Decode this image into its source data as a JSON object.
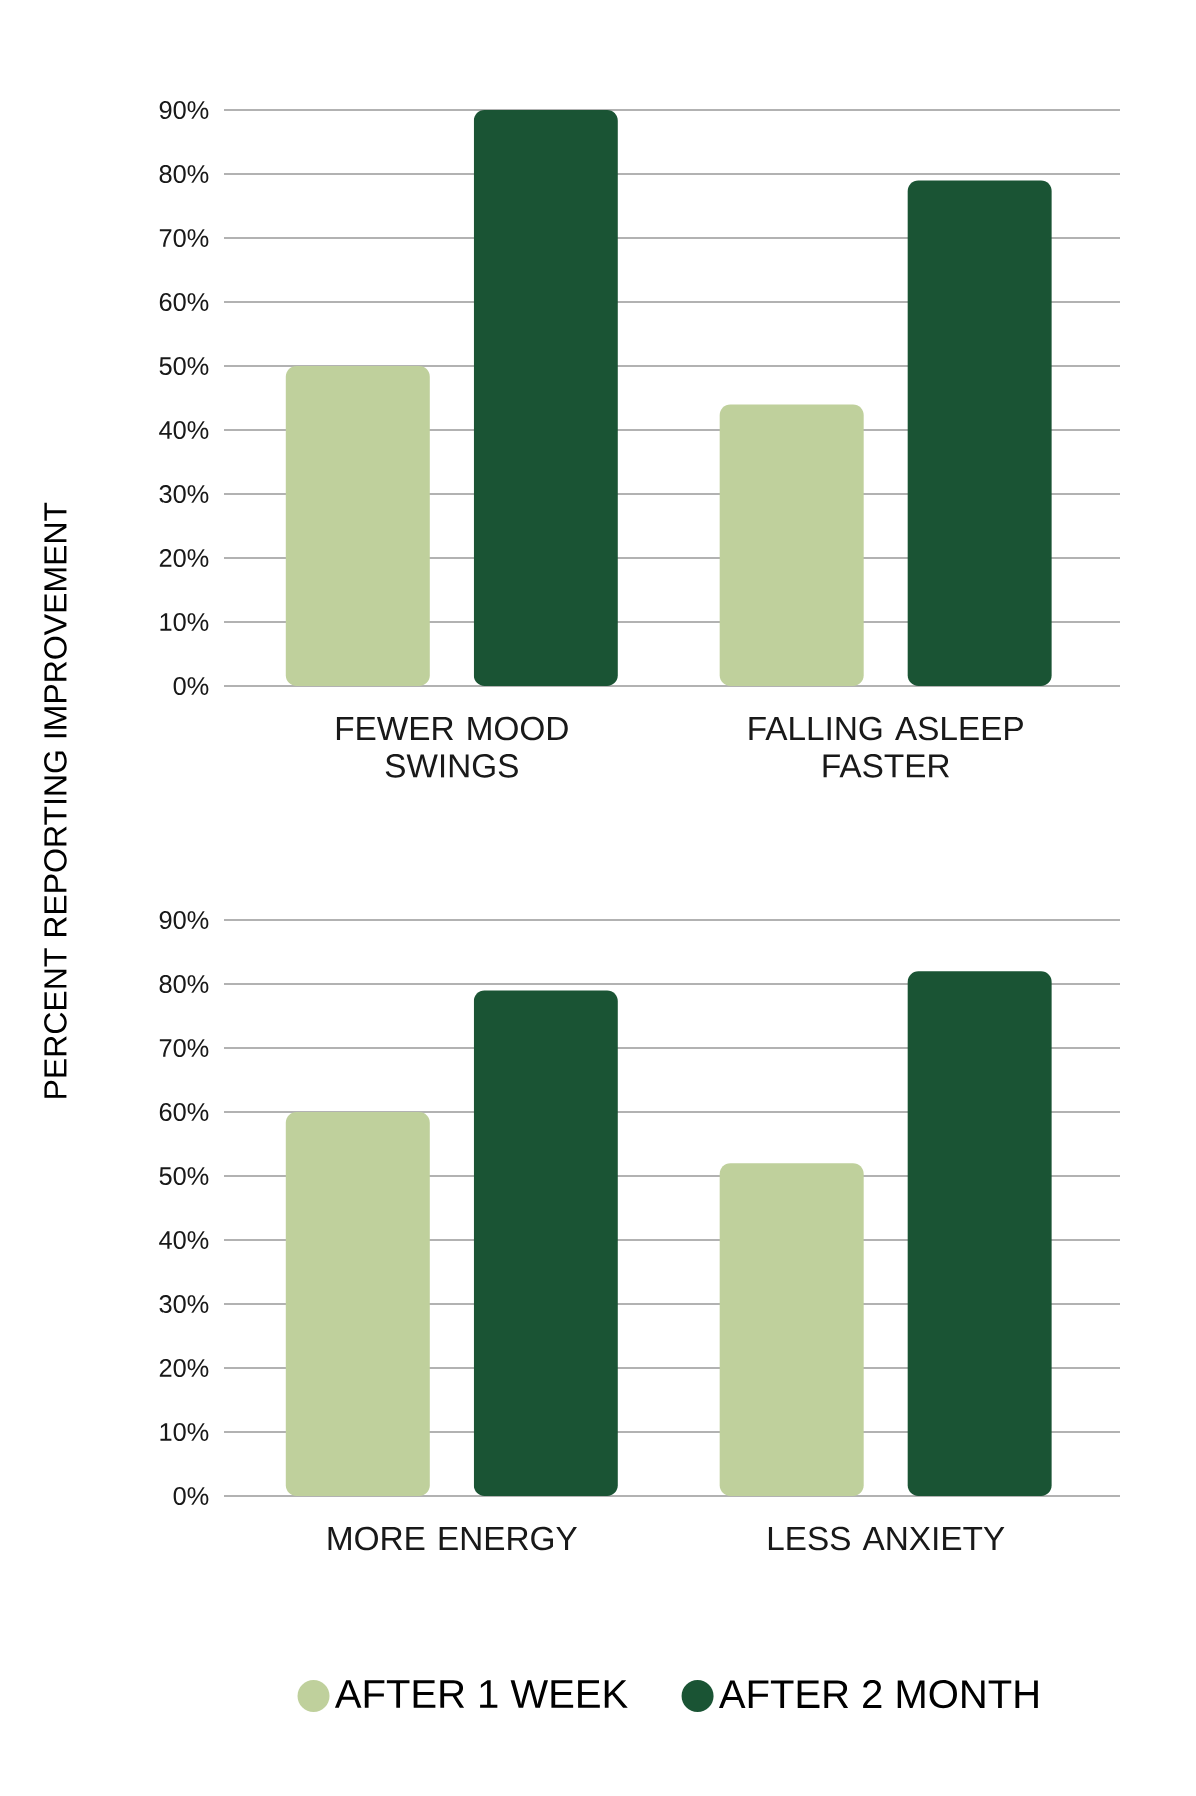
{
  "chart_data": [
    {
      "type": "bar",
      "ylabel": "PERCENT REPORTING IMPROVEMENT",
      "categories": [
        "FEWER MOOD SWINGS",
        "FALLING ASLEEP FASTER"
      ],
      "series": [
        {
          "color": "#bfd09c",
          "values": [
            50,
            44
          ]
        },
        {
          "color": "#1a5434",
          "values": [
            90,
            79
          ]
        }
      ],
      "ylim": [
        0,
        90
      ],
      "yticks": [
        {
          "value": 0,
          "label": "0%"
        },
        {
          "value": 10,
          "label": "10%"
        },
        {
          "value": 20,
          "label": "20%"
        },
        {
          "value": 30,
          "label": "30%"
        },
        {
          "value": 40,
          "label": "40%"
        },
        {
          "value": 50,
          "label": "50%"
        },
        {
          "value": 60,
          "label": "60%"
        },
        {
          "value": 70,
          "label": "70%"
        },
        {
          "value": 80,
          "label": "80%"
        },
        {
          "value": 90,
          "label": "90%"
        }
      ],
      "grid": "y"
    },
    {
      "type": "bar",
      "categories": [
        "MORE ENERGY",
        "LESS ANXIETY"
      ],
      "series": [
        {
          "name": "AFTER 1 WEEK",
          "color": "#bfd09c",
          "values": [
            60,
            52
          ]
        },
        {
          "name": "AFTER 2 MONTH",
          "color": "#1a5434",
          "values": [
            79,
            82
          ]
        }
      ],
      "ylim": [
        0,
        90
      ],
      "yticks": [
        {
          "value": 0,
          "label": "0%"
        },
        {
          "value": 10,
          "label": "10%"
        },
        {
          "value": 20,
          "label": "20%"
        },
        {
          "value": 30,
          "label": "30%"
        },
        {
          "value": 40,
          "label": "40%"
        },
        {
          "value": 50,
          "label": "50%"
        },
        {
          "value": 60,
          "label": "60%"
        },
        {
          "value": 70,
          "label": "70%"
        },
        {
          "value": 80,
          "label": "80%"
        },
        {
          "value": 90,
          "label": "90%"
        }
      ],
      "grid": "y",
      "legend": "bottom"
    }
  ]
}
